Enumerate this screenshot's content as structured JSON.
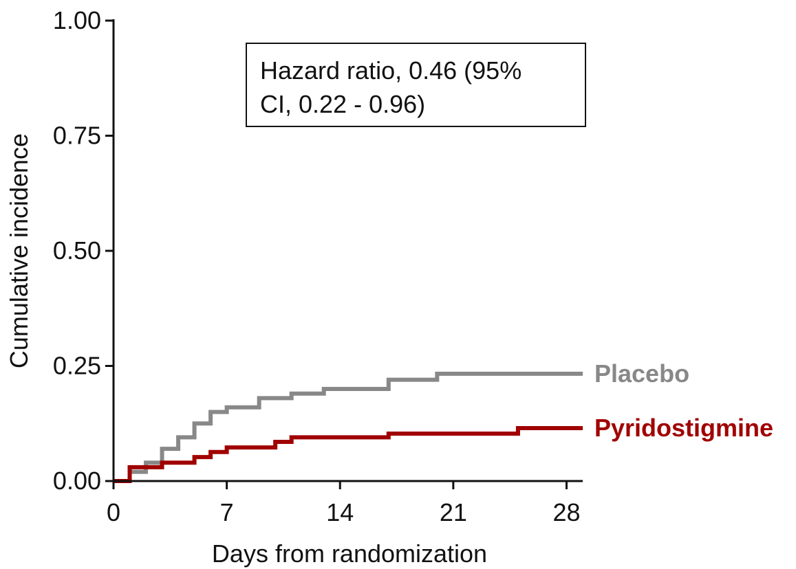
{
  "chart_data": {
    "type": "line",
    "step": true,
    "xlabel": "Days from randomization",
    "ylabel": "Cumulative incidence",
    "xlim": [
      0,
      29
    ],
    "ylim": [
      0,
      1.0
    ],
    "x_ticks": [
      0,
      7,
      14,
      21,
      28
    ],
    "x_tick_labels": [
      "0",
      "7",
      "14",
      "21",
      "28"
    ],
    "y_ticks": [
      0,
      0.25,
      0.5,
      0.75,
      1.0
    ],
    "y_tick_labels": [
      "0.00",
      "0.25",
      "0.50",
      "0.75",
      "1.00"
    ],
    "grid": false,
    "legend": "inline labels at right end of lines",
    "annotation": {
      "lines": [
        "Hazard ratio, 0.46 (95%",
        "CI, 0.22 - 0.96)"
      ]
    },
    "series": [
      {
        "name": "Placebo",
        "color": "#888888",
        "x": [
          0,
          1,
          2,
          3,
          4,
          5,
          6,
          7,
          9,
          11,
          13,
          17,
          20,
          29
        ],
        "y": [
          0.0,
          0.02,
          0.04,
          0.07,
          0.095,
          0.125,
          0.15,
          0.16,
          0.18,
          0.19,
          0.2,
          0.22,
          0.233,
          0.233
        ]
      },
      {
        "name": "Pyridostigmine",
        "color": "#a00000",
        "x": [
          0,
          1,
          3,
          5,
          6,
          7,
          10,
          11,
          17,
          25,
          29
        ],
        "y": [
          0.0,
          0.03,
          0.04,
          0.052,
          0.063,
          0.073,
          0.085,
          0.095,
          0.103,
          0.115,
          0.115
        ]
      }
    ]
  }
}
